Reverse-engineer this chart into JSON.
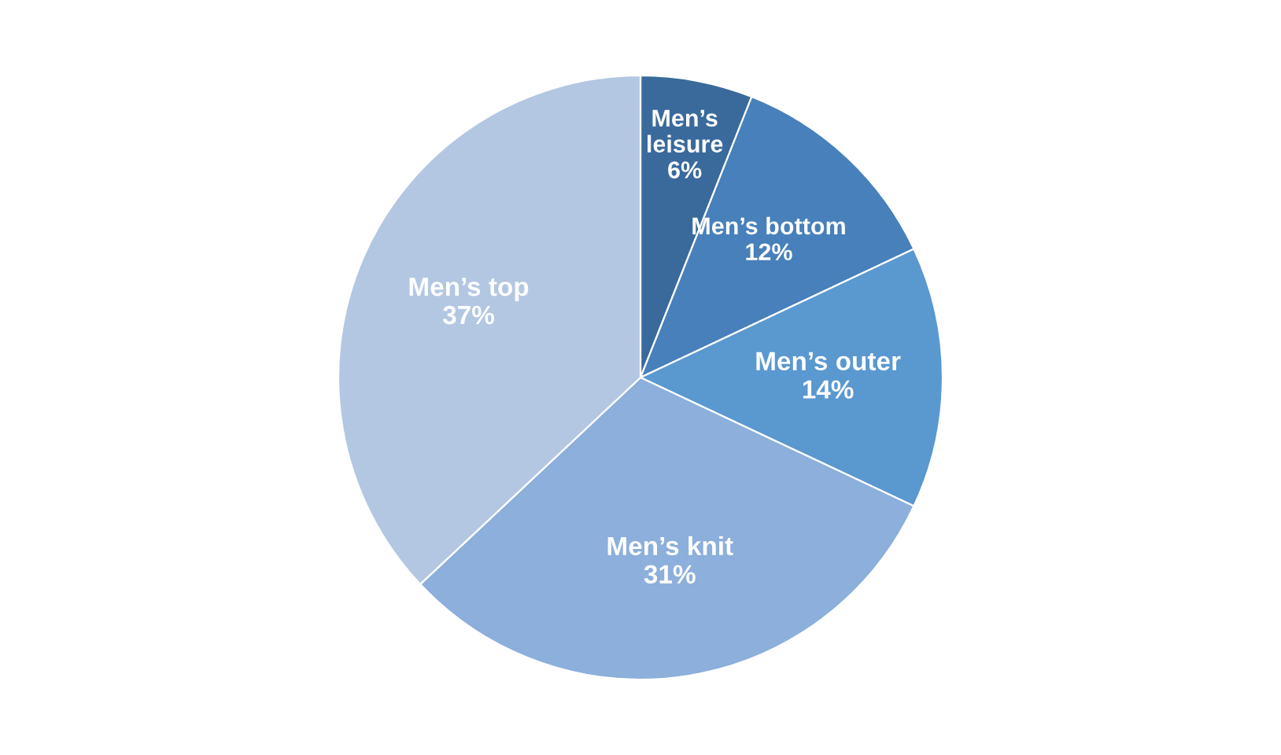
{
  "chart_data": {
    "type": "pie",
    "categories": [
      "Men’s leisure",
      "Men’s bottom",
      "Men’s outer",
      "Men’s knit",
      "Men’s top"
    ],
    "values": [
      6,
      12,
      14,
      31,
      37
    ],
    "value_labels": [
      "6%",
      "12%",
      "14%",
      "31%",
      "37%"
    ],
    "colors": [
      "#3a6a9c",
      "#4780ba",
      "#5a98d0",
      "#8cafdb",
      "#b3c7e2"
    ]
  }
}
